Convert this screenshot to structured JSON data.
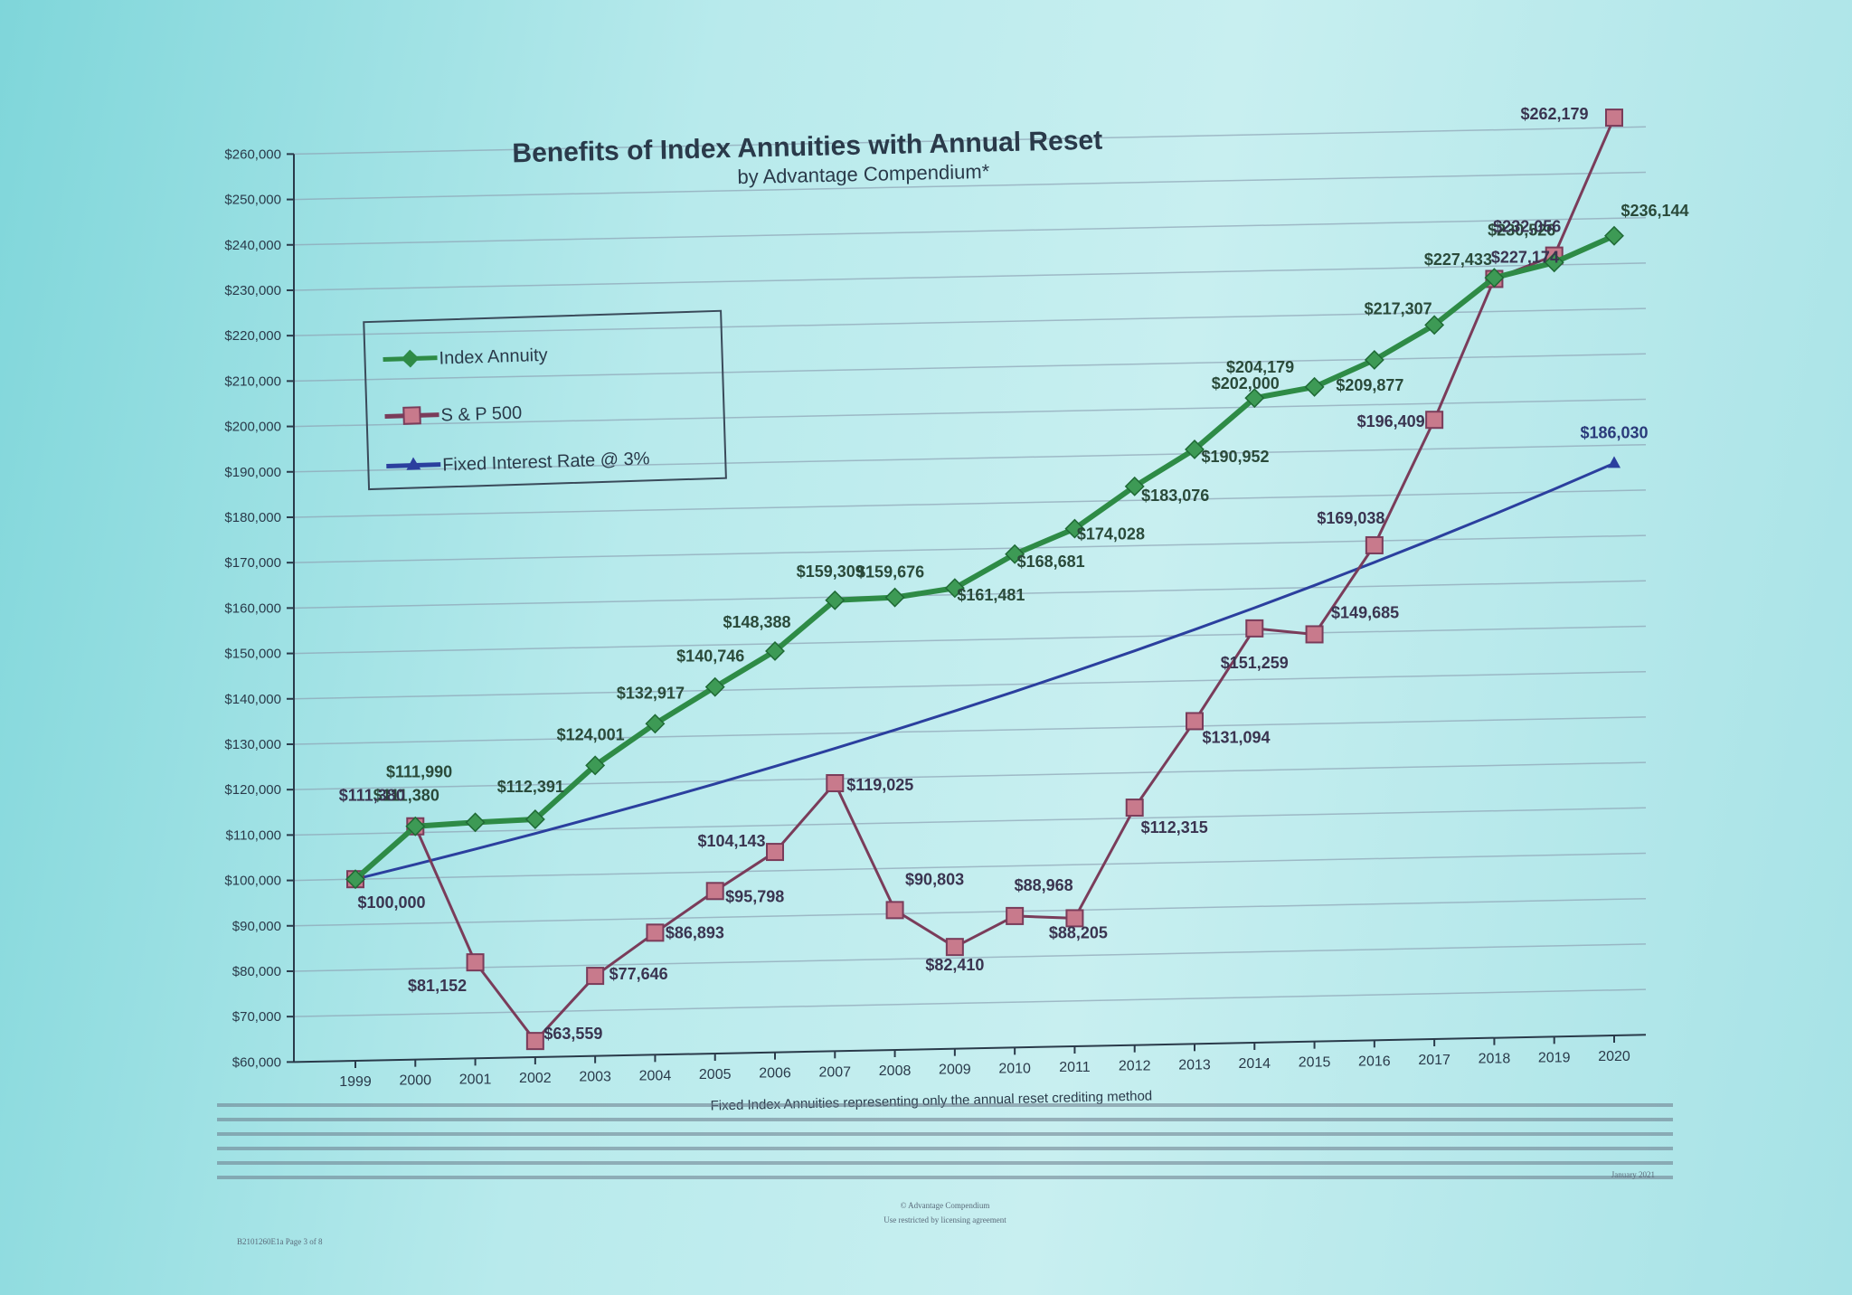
{
  "chart_data": {
    "type": "line",
    "title": "Benefits of Index Annuities with Annual Reset",
    "subtitle": "by Advantage Compendium*",
    "xlabel": "Fixed Index Annuities representing only the annual reset crediting method",
    "ylabel": "",
    "ylim": [
      60000,
      260000
    ],
    "yticks": [
      "$60,000",
      "$70,000",
      "$80,000",
      "$90,000",
      "$100,000",
      "$110,000",
      "$120,000",
      "$130,000",
      "$140,000",
      "$150,000",
      "$160,000",
      "$170,000",
      "$180,000",
      "$190,000",
      "$200,000",
      "$210,000",
      "$220,000",
      "$230,000",
      "$240,000",
      "$250,000",
      "$260,000"
    ],
    "categories": [
      "1999",
      "2000",
      "2001",
      "2002",
      "2003",
      "2004",
      "2005",
      "2006",
      "2007",
      "2008",
      "2009",
      "2010",
      "2011",
      "2012",
      "2013",
      "2014",
      "2015",
      "2016",
      "2017",
      "2018",
      "2019",
      "2020"
    ],
    "legend_position": "top-left",
    "grid": true,
    "series": [
      {
        "name": "Index Annuity",
        "color": "#2e8b46",
        "marker": "diamond",
        "values": [
          100000,
          111380,
          111990,
          112391,
          124001,
          132917,
          140746,
          148388,
          159309,
          159676,
          161481,
          168681,
          174028,
          183076,
          190952,
          202000,
          204179,
          209877,
          217307,
          227433,
          230526,
          236144
        ],
        "labels": [
          "",
          "$111,380",
          "$111,990",
          "$112,391",
          "$124,001",
          "$132,917",
          "$140,746",
          "$148,388",
          "$159,309",
          "$159,676",
          "$161,481",
          "$168,681",
          "$174,028",
          "$183,076",
          "$190,952",
          "$202,000",
          "$204,179",
          "$209,877",
          "$217,307",
          "$227,433",
          "$230,526",
          "$236,144"
        ]
      },
      {
        "name": "S & P 500",
        "color": "#7a3c5a",
        "marker": "square",
        "values": [
          100000,
          111380,
          81152,
          63559,
          77646,
          86893,
          95798,
          104143,
          119025,
          90803,
          82410,
          88968,
          88205,
          112315,
          131094,
          151259,
          149685,
          169038,
          196409,
          227174,
          232056,
          262179
        ],
        "labels": [
          "$100,000",
          "$111,380",
          "$81,152",
          "$63,559",
          "$77,646",
          "$86,893",
          "$95,798",
          "$104,143",
          "$119,025",
          "$90,803",
          "$82,410",
          "$88,968",
          "$88,205",
          "$112,315",
          "$131,094",
          "$151,259",
          "$149,685",
          "$169,038",
          "$196,409",
          "$227,174",
          "$232,056",
          "$262,179"
        ]
      },
      {
        "name": "Fixed Interest Rate @ 3%",
        "color": "#2b3f9e",
        "marker": "triangle",
        "values": [
          100000,
          103000,
          106090,
          109273,
          112551,
          115927,
          119405,
          122987,
          126677,
          130477,
          134392,
          138423,
          142576,
          146853,
          151259,
          155797,
          160471,
          165285,
          170243,
          175351,
          180611,
          186030
        ],
        "labels": [
          "",
          "",
          "",
          "",
          "",
          "",
          "",
          "",
          "",
          "",
          "",
          "",
          "",
          "",
          "",
          "",
          "",
          "",
          "",
          "",
          "",
          "$186,030"
        ]
      }
    ]
  },
  "footnotes": {
    "date": "January 2021",
    "copyright": "© Advantage Compendium",
    "usage": "Use restricted by licensing agreement",
    "page": "B2101260E1a Page 3 of 8"
  }
}
